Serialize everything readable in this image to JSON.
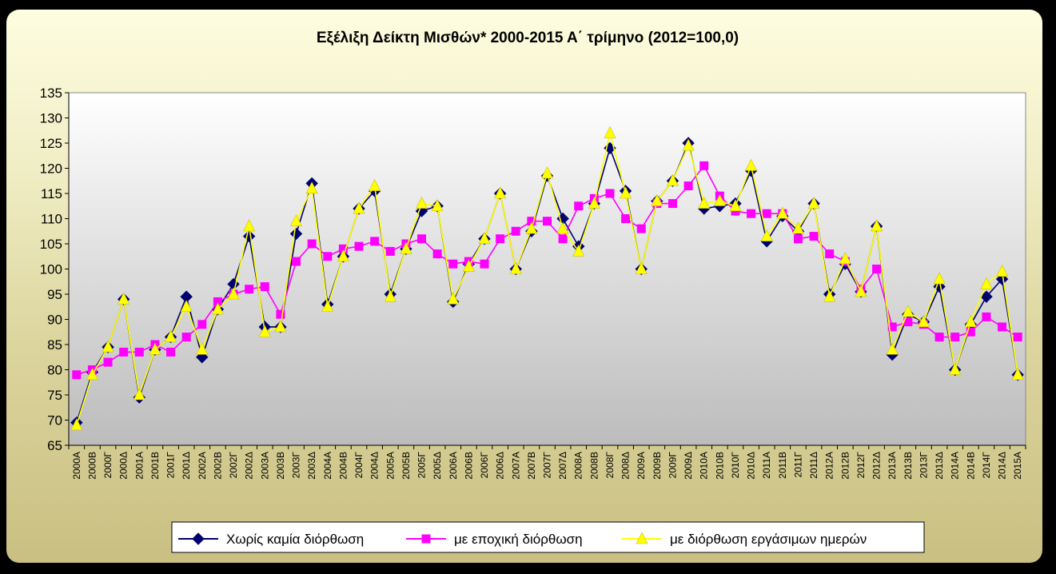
{
  "chart_data": {
    "type": "line",
    "title": "Εξέλιξη Δείκτη Μισθών* 2000-2015 Α΄ τρίμηνο (2012=100,0)",
    "xlabel": "",
    "ylabel": "",
    "ylim": [
      65,
      135
    ],
    "yticks": [
      "65",
      "70",
      "75",
      "80",
      "85",
      "90",
      "95",
      "100",
      "105",
      "110",
      "115",
      "120",
      "125",
      "130",
      "135"
    ],
    "grid": false,
    "legend": "bottom",
    "categories": [
      "2000Α",
      "2000Β",
      "2000Γ",
      "2000Δ",
      "2001Α",
      "2001Β",
      "2001Γ",
      "2001Δ",
      "2002Α",
      "2002Β",
      "2002Γ",
      "2002Δ",
      "2003Α",
      "2003Β",
      "2003Γ",
      "2003Δ",
      "2004Α",
      "2004Β",
      "2004Γ",
      "2004Δ",
      "2005Α",
      "2005Β",
      "2005Γ",
      "2005Δ",
      "2006Α",
      "2006Β",
      "2006Γ",
      "2006Δ",
      "2007Α",
      "2007Β",
      "2007Γ",
      "2007Δ",
      "2008Α",
      "2008Β",
      "2008Γ",
      "2008Δ",
      "2009Α",
      "2009Β",
      "2009Γ",
      "2009Δ",
      "2010Α",
      "2010Β",
      "2010Γ",
      "2010Δ",
      "2011Α",
      "2011Β",
      "2011Γ",
      "2011Δ",
      "2012Α",
      "2012Β",
      "2012Γ",
      "2012Δ",
      "2013Α",
      "2013Β",
      "2013Γ",
      "2013Δ",
      "2014Α",
      "2014Β",
      "2014Γ",
      "2014Δ",
      "2015Α"
    ],
    "series": [
      {
        "name": "Χωρίς καμία διόρθωση",
        "color": "#00006e",
        "marker": "diamond",
        "values": [
          69.5,
          79.5,
          84.5,
          94,
          74.5,
          84,
          86.5,
          94.5,
          82.5,
          92,
          97,
          106.5,
          88.5,
          88.5,
          107,
          117,
          93,
          102.5,
          112,
          115.5,
          95,
          104,
          111.5,
          112.5,
          93.5,
          101,
          106,
          115,
          100,
          107.5,
          118.5,
          110,
          104.5,
          113,
          124,
          115.5,
          100,
          113.5,
          117.5,
          125,
          112,
          112.5,
          113,
          119.5,
          105.5,
          110.5,
          107.5,
          113,
          95,
          101,
          95.5,
          108.5,
          83,
          91,
          89.5,
          96.5,
          80,
          89,
          94.5,
          98,
          79
        ]
      },
      {
        "name": "με εποχική διόρθωση",
        "color": "#ff00ff",
        "marker": "square",
        "values": [
          79,
          80,
          81.5,
          83.5,
          83.5,
          85,
          83.5,
          86.5,
          89,
          93.5,
          95,
          96,
          96.5,
          91,
          101.5,
          105,
          102.5,
          104,
          104.5,
          105.5,
          103.5,
          105,
          106,
          103,
          101,
          101.5,
          101,
          106,
          107.5,
          109.5,
          109.5,
          106,
          112.5,
          114,
          115,
          110,
          108,
          113,
          113,
          116.5,
          120.5,
          114.5,
          111.5,
          111,
          111,
          111,
          106,
          106.5,
          103,
          101.5,
          96,
          100,
          88.5,
          89.5,
          89,
          86.5,
          86.5,
          87.5,
          90.5,
          88.5,
          86.5
        ]
      },
      {
        "name": "με διόρθωση εργάσιμων ημερών",
        "color": "#ffff00",
        "marker": "triangle",
        "values": [
          69,
          79,
          84.5,
          94,
          75,
          84,
          86.5,
          92.5,
          84,
          92,
          95,
          108.5,
          87.5,
          88.5,
          109.5,
          116,
          92.5,
          102.5,
          112,
          116.5,
          94.5,
          104,
          113,
          112.5,
          94,
          100.5,
          106,
          115,
          100,
          108,
          119,
          108,
          103.5,
          113,
          127,
          115,
          100,
          113.5,
          117.5,
          124.5,
          113,
          113.5,
          112.5,
          120.5,
          106.5,
          111,
          108,
          113,
          94.5,
          102,
          95.5,
          108.5,
          84,
          91.5,
          89.5,
          98,
          80,
          89.5,
          97,
          99.5,
          79
        ]
      }
    ]
  }
}
